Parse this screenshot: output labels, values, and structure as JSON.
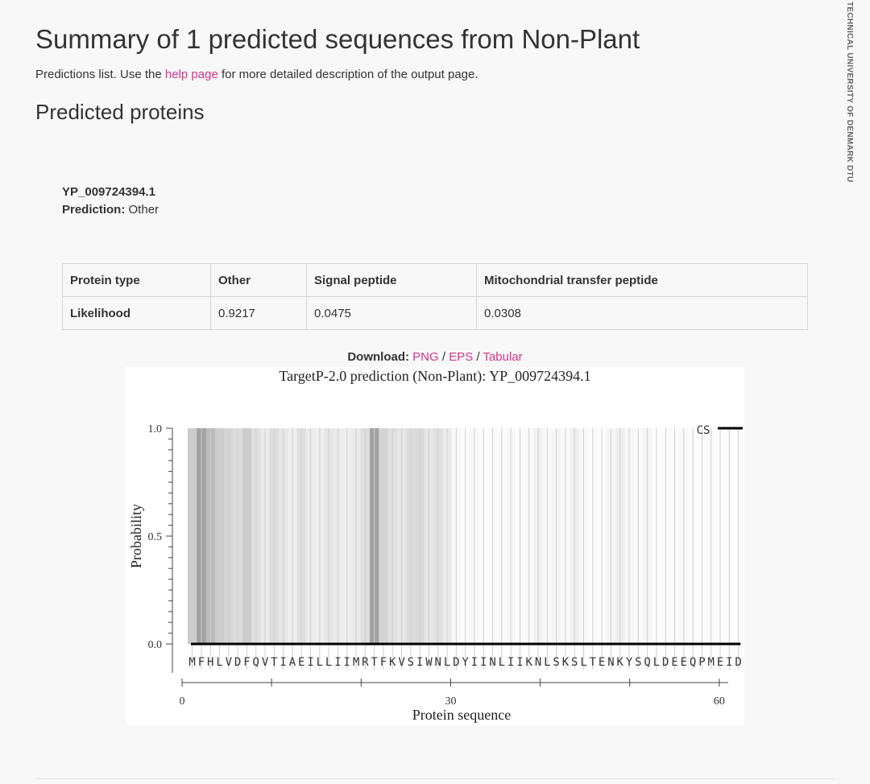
{
  "header": {
    "title": "Summary of 1 predicted sequences from Non-Plant",
    "intro_prefix": "Predictions list. Use the ",
    "intro_link": "help page",
    "intro_suffix": " for more detailed description of the output page."
  },
  "section_title": "Predicted proteins",
  "protein": {
    "id": "YP_009724394.1",
    "prediction_label": "Prediction:",
    "prediction_value": "Other"
  },
  "table": {
    "headers": [
      "Protein type",
      "Other",
      "Signal peptide",
      "Mitochondrial transfer peptide"
    ],
    "row": [
      "Likelihood",
      "0.9217",
      "0.0475",
      "0.0308"
    ]
  },
  "download": {
    "label": "Download:",
    "png": "PNG",
    "sep": "/",
    "eps": "EPS",
    "tabular": "Tabular"
  },
  "side_brand": "TECHNICAL UNIVERSITY OF DENMARK DTU",
  "colors": {
    "accent_link": "#d6338a",
    "background": "#f8f8f8"
  },
  "chart_data": {
    "type": "line",
    "title": "TargetP-2.0 prediction (Non-Plant):  YP_009724394.1",
    "xlabel": "Protein sequence",
    "ylabel": "Probability",
    "xlim": [
      0,
      61
    ],
    "ylim": [
      0,
      1
    ],
    "x_ticks": [
      0,
      30,
      60
    ],
    "y_ticks": [
      "0.0",
      "0.5",
      "1.0"
    ],
    "sequence": "MFHLVDFQVTIAEILLIIMRTFKVSIWNLDYIINLIIKNLSKSLTENKYSQLDEEQPMEID",
    "legend": "CS",
    "legend_position": "top-right",
    "series": [
      {
        "name": "CS",
        "values": []
      },
      {
        "name": "shading",
        "values": [
          0.3,
          0.55,
          0.4,
          0.3,
          0.25,
          0.2,
          0.3,
          0.18,
          0.12,
          0.2,
          0.15,
          0.1,
          0.18,
          0.12,
          0.1,
          0.15,
          0.12,
          0.1,
          0.12,
          0.2,
          0.55,
          0.25,
          0.18,
          0.15,
          0.2,
          0.22,
          0.15,
          0.18,
          0.12,
          0.04,
          0.02,
          0.05,
          0.02,
          0.03,
          0.02,
          0.05,
          0.02,
          0.03,
          0.08,
          0.04,
          0.06,
          0.03,
          0.1,
          0.04,
          0.03,
          0.02,
          0.06,
          0.1,
          0.04,
          0.03,
          0.06,
          0.02,
          0.03,
          0.02,
          0.04,
          0.02,
          0.02,
          0.03,
          0.02,
          0.02,
          0.02
        ]
      }
    ]
  }
}
